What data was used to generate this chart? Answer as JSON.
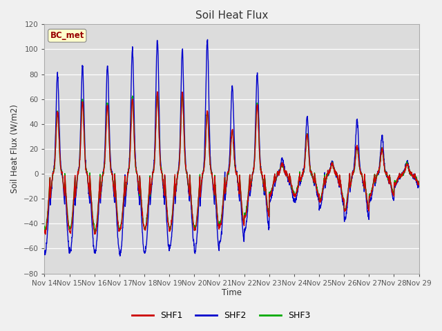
{
  "title": "Soil Heat Flux",
  "ylabel": "Soil Heat Flux (W/m2)",
  "xlabel": "Time",
  "ylim": [
    -80,
    120
  ],
  "yticks": [
    -80,
    -60,
    -40,
    -20,
    0,
    20,
    40,
    60,
    80,
    100,
    120
  ],
  "xtick_labels": [
    "Nov 14",
    "Nov 15",
    "Nov 16",
    "Nov 17",
    "Nov 18",
    "Nov 19",
    "Nov 20",
    "Nov 21",
    "Nov 22",
    "Nov 23",
    "Nov 24",
    "Nov 25",
    "Nov 26",
    "Nov 27",
    "Nov 28",
    "Nov 29"
  ],
  "annotation": "BC_met",
  "line_colors": {
    "SHF1": "#cc0000",
    "SHF2": "#0000cc",
    "SHF3": "#00aa00"
  },
  "n_days": 15,
  "pts_per_day": 144,
  "background_color": "#dcdcdc",
  "fig_bg": "#f0f0f0"
}
